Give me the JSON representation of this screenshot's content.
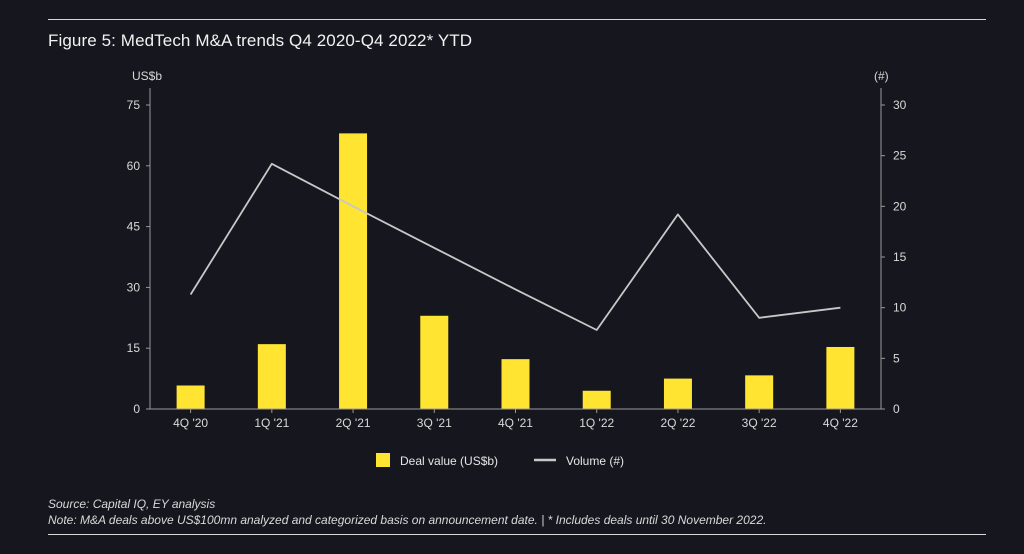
{
  "figure": {
    "title": "Figure 5: MedTech M&A trends Q4 2020-Q4 2022* YTD"
  },
  "footnotes": {
    "source": "Source: Capital IQ, EY analysis",
    "note": "Note: M&A deals above US$100mn analyzed and categorized basis on announcement date.  |  * Includes deals until 30 November 2022."
  },
  "colors": {
    "background": "#16161e",
    "bar": "#ffe432",
    "line": "#c8c8c8",
    "axis": "#9a9a9a",
    "text": "#d9d9d9"
  },
  "chart_data": {
    "type": "bar",
    "categories": [
      "4Q '20",
      "1Q '21",
      "2Q '21",
      "3Q '21",
      "4Q '21",
      "1Q '22",
      "2Q '22",
      "3Q '22",
      "4Q '22"
    ],
    "series": [
      {
        "name": "Deal value (US$b)",
        "type": "bar",
        "axis": "left",
        "values": [
          5.8,
          16.0,
          68.0,
          23.0,
          12.3,
          4.5,
          7.5,
          8.3,
          15.3
        ]
      },
      {
        "name": "Volume (#)",
        "type": "line",
        "axis": "right",
        "values": [
          11.3,
          24.2,
          20.0,
          15.9,
          11.8,
          7.8,
          19.2,
          9.0,
          10.0
        ]
      }
    ],
    "left_axis": {
      "label": "US$b",
      "ticks": [
        0,
        15,
        30,
        45,
        60,
        75
      ],
      "range": [
        0,
        75
      ]
    },
    "right_axis": {
      "label": "(#)",
      "ticks": [
        0,
        5,
        10,
        15,
        20,
        25,
        30
      ],
      "range": [
        0,
        30
      ]
    },
    "grid": false,
    "legend_position": "bottom-center"
  }
}
